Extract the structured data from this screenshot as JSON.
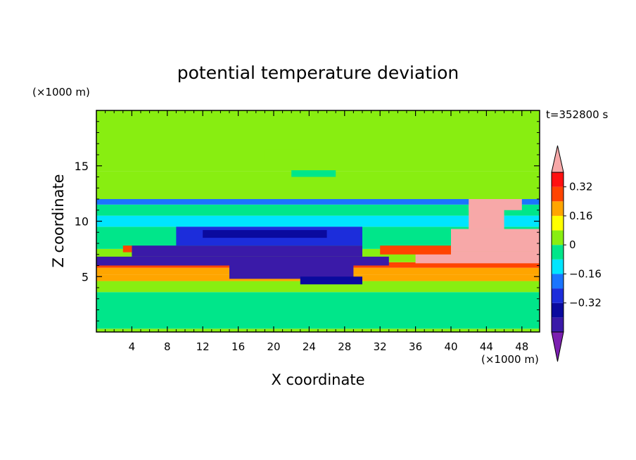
{
  "chart_data": {
    "type": "heatmap",
    "title": "potential temperature deviation",
    "xlabel": "X coordinate",
    "ylabel": "Z coordinate",
    "x_unit": "(×1000 m)",
    "y_unit": "(×1000 m)",
    "time_label": "t=352800 s",
    "xlim": [
      0,
      50
    ],
    "ylim": [
      0,
      20
    ],
    "x_ticks": [
      4,
      8,
      12,
      16,
      20,
      24,
      28,
      32,
      36,
      40,
      44,
      48
    ],
    "y_ticks": [
      5,
      10,
      15
    ],
    "colorbar": {
      "levels": [
        -0.48,
        -0.4,
        -0.32,
        -0.24,
        -0.16,
        -0.08,
        0,
        0.08,
        0.16,
        0.24,
        0.32,
        0.4
      ],
      "colors": [
        "#7b1fb0",
        "#3a1aa8",
        "#0a0a9e",
        "#1c2ddb",
        "#1a75ff",
        "#00e5ff",
        "#00e68a",
        "#88ee11",
        "#ffff00",
        "#ffa500",
        "#ff4400",
        "#ff1111",
        "#f7a8a8"
      ],
      "tick_labels": [
        {
          "value": 0.32,
          "label": "0.32"
        },
        {
          "value": 0.16,
          "label": "0.16"
        },
        {
          "value": 0,
          "label": "0"
        },
        {
          "value": -0.16,
          "label": "−0.16"
        },
        {
          "value": -0.32,
          "label": "−0.32"
        }
      ]
    },
    "regions": [
      {
        "z": [
          0.0,
          0.3
        ],
        "x": [
          0,
          50
        ],
        "value": 0.0
      },
      {
        "z": [
          0.3,
          3.6
        ],
        "x": [
          0,
          50
        ],
        "value": -0.04
      },
      {
        "z": [
          3.6,
          4.6
        ],
        "x": [
          0,
          50
        ],
        "value": 0.04
      },
      {
        "z": [
          4.6,
          5.2
        ],
        "x": [
          0,
          50
        ],
        "value": 0.16
      },
      {
        "z": [
          5.2,
          5.8
        ],
        "x": [
          0,
          50
        ],
        "value": 0.22
      },
      {
        "z": [
          5.8,
          6.3
        ],
        "x": [
          0,
          50
        ],
        "value": 0.28
      },
      {
        "z": [
          6.3,
          7.5
        ],
        "x": [
          0,
          50
        ],
        "value": 0.05
      },
      {
        "z": [
          7.5,
          9.5
        ],
        "x": [
          0,
          50
        ],
        "value": -0.06
      },
      {
        "z": [
          9.5,
          10.5
        ],
        "x": [
          0,
          50
        ],
        "value": -0.12
      },
      {
        "z": [
          10.5,
          11.5
        ],
        "x": [
          0,
          50
        ],
        "value": -0.03
      },
      {
        "z": [
          11.5,
          12.0
        ],
        "x": [
          0,
          50
        ],
        "value": -0.2
      },
      {
        "z": [
          12.0,
          14.5
        ],
        "x": [
          0,
          50
        ],
        "value": 0.04
      },
      {
        "z": [
          14.5,
          20.0
        ],
        "x": [
          0,
          50
        ],
        "value": 0.02
      },
      {
        "z": [
          6.0,
          6.8
        ],
        "x": [
          0,
          33
        ],
        "value": -0.45
      },
      {
        "z": [
          6.8,
          7.8
        ],
        "x": [
          4,
          30
        ],
        "value": -0.42
      },
      {
        "z": [
          7.8,
          9.5
        ],
        "x": [
          9,
          30
        ],
        "value": -0.3
      },
      {
        "z": [
          8.5,
          9.2
        ],
        "x": [
          12,
          26
        ],
        "value": -0.38
      },
      {
        "z": [
          4.8,
          6.0
        ],
        "x": [
          15,
          29
        ],
        "value": -0.44
      },
      {
        "z": [
          4.3,
          5.0
        ],
        "x": [
          23,
          30
        ],
        "value": -0.4
      },
      {
        "z": [
          6.2,
          7.3
        ],
        "x": [
          36,
          50
        ],
        "value": 0.45
      },
      {
        "z": [
          7.3,
          9.3
        ],
        "x": [
          40,
          50
        ],
        "value": 0.45
      },
      {
        "z": [
          9.3,
          11.5
        ],
        "x": [
          42,
          46
        ],
        "value": 0.45
      },
      {
        "z": [
          11.0,
          12.0
        ],
        "x": [
          42,
          48
        ],
        "value": 0.42
      },
      {
        "z": [
          7.0,
          7.8
        ],
        "x": [
          32,
          40
        ],
        "value": 0.3
      },
      {
        "z": [
          7.2,
          7.8
        ],
        "x": [
          3,
          4
        ],
        "value": 0.28
      },
      {
        "z": [
          15.5,
          16.5
        ],
        "x": [
          19,
          23
        ],
        "value": 0.06
      },
      {
        "z": [
          14.0,
          14.6
        ],
        "x": [
          22,
          27
        ],
        "value": -0.06
      }
    ]
  }
}
